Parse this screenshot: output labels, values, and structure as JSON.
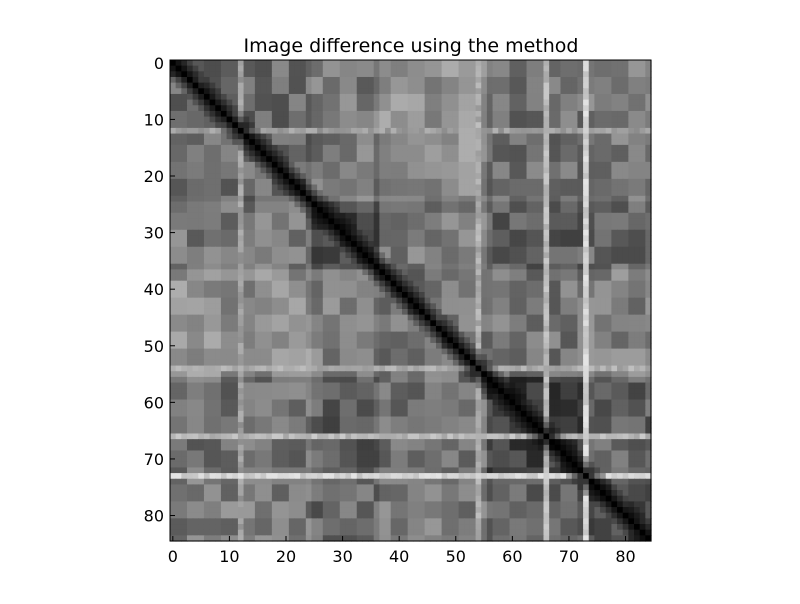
{
  "chart_data": {
    "type": "heatmap",
    "title": "Image difference using the method",
    "xlabel": "",
    "ylabel": "",
    "colormap": "grayscale",
    "rows": 85,
    "cols": 85,
    "xlim": [
      0,
      85
    ],
    "ylim": [
      85,
      0
    ],
    "x_ticks": [
      "0",
      "10",
      "20",
      "30",
      "40",
      "50",
      "60",
      "70",
      "80"
    ],
    "y_ticks": [
      "0",
      "10",
      "20",
      "30",
      "40",
      "50",
      "60",
      "70",
      "80"
    ],
    "diagonal_value": 0.0,
    "grid": false,
    "legend": "none",
    "blocks": [
      {
        "start": 0,
        "end": 25,
        "base": 0.42
      },
      {
        "start": 25,
        "end": 37,
        "base": 0.28
      },
      {
        "start": 37,
        "end": 56,
        "base": 0.45
      },
      {
        "start": 56,
        "end": 74,
        "base": 0.22
      },
      {
        "start": 74,
        "end": 85,
        "base": 0.3
      }
    ],
    "bright_lines": [
      {
        "index": 66,
        "value": 0.8
      },
      {
        "index": 73,
        "value": 0.9
      },
      {
        "index": 54,
        "value": 0.75
      },
      {
        "index": 12,
        "value": 0.7
      }
    ]
  }
}
